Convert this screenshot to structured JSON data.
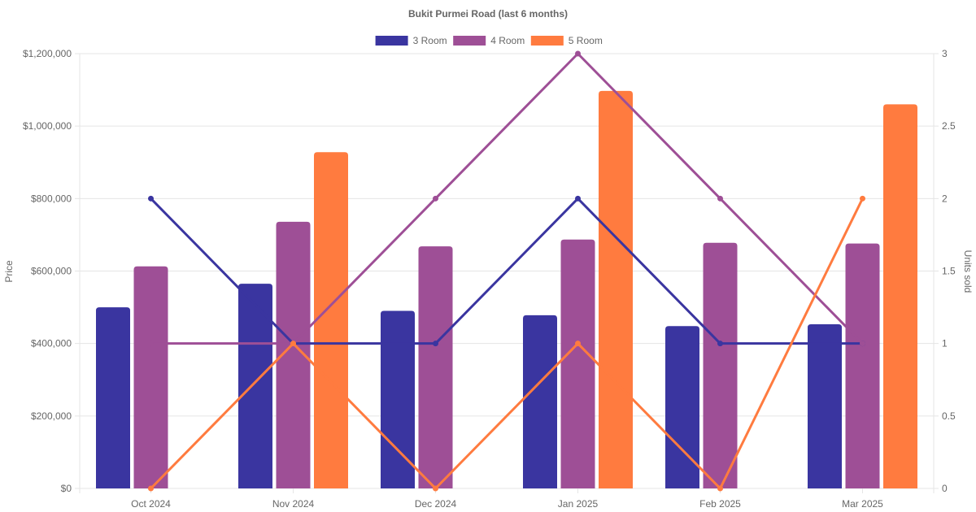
{
  "chart_data": {
    "type": "bar",
    "title": "Bukit Purmei Road (last 6 months)",
    "categories": [
      "Oct 2024",
      "Nov 2024",
      "Dec 2024",
      "Jan 2025",
      "Feb 2025",
      "Mar 2025"
    ],
    "ylabel": "Price",
    "y2label": "Units sold",
    "ylim": [
      0,
      1200000
    ],
    "y2lim": [
      0,
      3
    ],
    "yticks": [
      "$0",
      "$200,000",
      "$400,000",
      "$600,000",
      "$800,000",
      "$1,000,000",
      "$1,200,000"
    ],
    "y2ticks": [
      "0",
      "0.5",
      "1",
      "1.5",
      "2",
      "2.5",
      "3"
    ],
    "legend_position": "top-center",
    "grid": true,
    "series": [
      {
        "name": "3 Room",
        "color": "#3a35a0",
        "price": [
          500000,
          565000,
          490000,
          478000,
          448000,
          453000
        ],
        "units": [
          2,
          1,
          1,
          2,
          1,
          1
        ]
      },
      {
        "name": "4 Room",
        "color": "#9e4f96",
        "price": [
          613000,
          736000,
          668000,
          687000,
          678000,
          676000
        ],
        "units": [
          1,
          1,
          2,
          3,
          2,
          1
        ]
      },
      {
        "name": "5 Room",
        "color": "#ff7b3f",
        "price": [
          null,
          928000,
          null,
          1097000,
          null,
          1060000
        ],
        "units": [
          0,
          1,
          0,
          1,
          0,
          2
        ]
      }
    ]
  }
}
